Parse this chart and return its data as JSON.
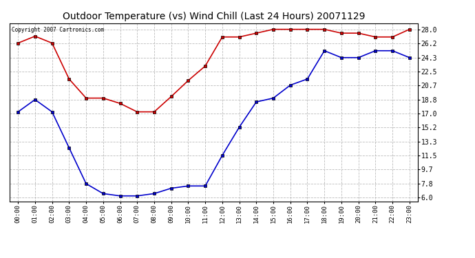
{
  "title": "Outdoor Temperature (vs) Wind Chill (Last 24 Hours) 20071129",
  "copyright_text": "Copyright 2007 Cartronics.com",
  "x_labels": [
    "00:00",
    "01:00",
    "02:00",
    "03:00",
    "04:00",
    "05:00",
    "06:00",
    "07:00",
    "08:00",
    "09:00",
    "10:00",
    "11:00",
    "12:00",
    "13:00",
    "14:00",
    "15:00",
    "16:00",
    "17:00",
    "18:00",
    "19:00",
    "20:00",
    "21:00",
    "22:00",
    "23:00"
  ],
  "temp_data": [
    26.2,
    27.1,
    26.2,
    21.5,
    19.0,
    19.0,
    18.3,
    17.2,
    17.2,
    19.2,
    21.3,
    23.2,
    27.0,
    27.0,
    27.5,
    28.0,
    28.0,
    28.0,
    28.0,
    27.5,
    27.5,
    27.0,
    27.0,
    28.0
  ],
  "wind_chill_data": [
    17.2,
    18.8,
    17.2,
    12.5,
    7.8,
    6.5,
    6.2,
    6.2,
    6.5,
    7.2,
    7.5,
    7.5,
    11.5,
    15.2,
    18.5,
    19.0,
    20.7,
    21.5,
    25.2,
    24.3,
    24.3,
    25.2,
    25.2,
    24.3
  ],
  "temp_color": "#cc0000",
  "wind_chill_color": "#0000cc",
  "yticks": [
    6.0,
    7.8,
    9.7,
    11.5,
    13.3,
    15.2,
    17.0,
    18.8,
    20.7,
    22.5,
    24.3,
    26.2,
    28.0
  ],
  "ylim": [
    5.5,
    28.8
  ],
  "background_color": "#ffffff",
  "plot_bg_color": "#ffffff",
  "grid_color": "#bbbbbb",
  "title_fontsize": 10,
  "marker": "s",
  "marker_size": 3
}
